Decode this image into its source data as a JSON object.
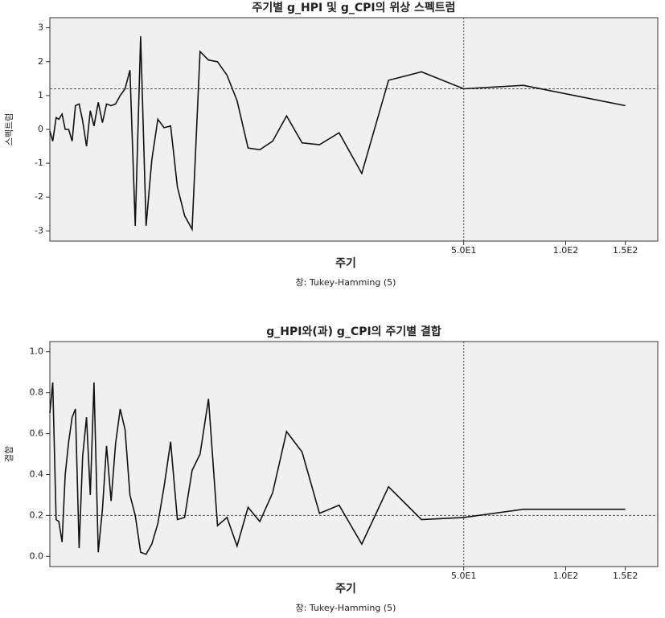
{
  "chart_data": [
    {
      "type": "line",
      "title": "주기별 g_HPI 및 g_CPI의 위상 스펙트럼",
      "x_label": "주기",
      "y_label": "스펙트럼",
      "note": "창: Tukey-Hamming (5)",
      "log_x": true,
      "xlim": [
        3,
        187
      ],
      "ylim": [
        -3.3,
        3.3
      ],
      "xticks": [
        {
          "value": 50,
          "label": "5.0E1"
        },
        {
          "value": 100,
          "label": "1.0E2"
        },
        {
          "value": 150,
          "label": "1.5E2"
        }
      ],
      "yticks": [
        -3,
        -2,
        -1,
        0,
        1,
        2,
        3
      ],
      "hline": 1.2,
      "vline": 50,
      "color": "#111111",
      "x": [
        3.0,
        3.06,
        3.13,
        3.19,
        3.26,
        3.33,
        3.41,
        3.49,
        3.57,
        3.66,
        3.75,
        3.85,
        3.95,
        4.05,
        4.17,
        4.29,
        4.41,
        4.55,
        4.69,
        4.84,
        5,
        5.17,
        5.36,
        5.56,
        5.77,
        6,
        6.25,
        6.52,
        6.82,
        7.14,
        7.5,
        7.89,
        8.33,
        8.82,
        9.38,
        10,
        10.71,
        11.54,
        12.5,
        13.64,
        15,
        16.67,
        18.75,
        21.43,
        25,
        30,
        37.5,
        50,
        75,
        150
      ],
      "values": [
        -0.05,
        -0.35,
        0.35,
        0.3,
        0.45,
        0.0,
        0.0,
        -0.35,
        0.7,
        0.75,
        0.25,
        -0.5,
        0.55,
        0.1,
        0.8,
        0.2,
        0.75,
        0.7,
        0.75,
        1.0,
        1.2,
        1.75,
        -2.85,
        2.75,
        -2.85,
        -0.9,
        0.3,
        0.05,
        0.1,
        -1.7,
        -2.55,
        -2.95,
        2.3,
        2.05,
        2.0,
        1.6,
        0.85,
        -0.55,
        -0.6,
        -0.35,
        0.4,
        -0.4,
        -0.45,
        -0.1,
        -1.3,
        1.45,
        1.7,
        1.2,
        1.3,
        0.7
      ]
    },
    {
      "type": "line",
      "title": "g_HPI와(과) g_CPI의 주기별 결합",
      "x_label": "주기",
      "y_label": "결합",
      "note": "창: Tukey-Hamming (5)",
      "log_x": true,
      "xlim": [
        3,
        187
      ],
      "ylim": [
        -0.05,
        1.05
      ],
      "xticks": [
        {
          "value": 50,
          "label": "5.0E1"
        },
        {
          "value": 100,
          "label": "1.0E2"
        },
        {
          "value": 150,
          "label": "1.5E2"
        }
      ],
      "yticks": [
        {
          "value": 0,
          "label": "0.0"
        },
        0.2,
        0.4,
        0.6,
        0.8,
        {
          "value": 1,
          "label": "1.0"
        }
      ],
      "hline": 0.2,
      "vline": 50,
      "color": "#111111",
      "x": [
        3.0,
        3.06,
        3.13,
        3.19,
        3.26,
        3.33,
        3.41,
        3.49,
        3.57,
        3.66,
        3.75,
        3.85,
        3.95,
        4.05,
        4.17,
        4.29,
        4.41,
        4.55,
        4.69,
        4.84,
        5,
        5.17,
        5.36,
        5.56,
        5.77,
        6,
        6.25,
        6.52,
        6.82,
        7.14,
        7.5,
        7.89,
        8.33,
        8.82,
        9.38,
        10,
        10.71,
        11.54,
        12.5,
        13.64,
        15,
        16.67,
        18.75,
        21.43,
        25,
        30,
        37.5,
        50,
        75,
        150
      ],
      "values": [
        0.7,
        0.85,
        0.18,
        0.17,
        0.07,
        0.4,
        0.56,
        0.68,
        0.72,
        0.04,
        0.49,
        0.68,
        0.3,
        0.85,
        0.02,
        0.23,
        0.54,
        0.27,
        0.55,
        0.72,
        0.62,
        0.3,
        0.2,
        0.02,
        0.01,
        0.06,
        0.16,
        0.34,
        0.56,
        0.18,
        0.19,
        0.42,
        0.5,
        0.77,
        0.15,
        0.19,
        0.05,
        0.24,
        0.17,
        0.31,
        0.61,
        0.51,
        0.21,
        0.25,
        0.06,
        0.34,
        0.18,
        0.19,
        0.23,
        0.23
      ]
    }
  ]
}
